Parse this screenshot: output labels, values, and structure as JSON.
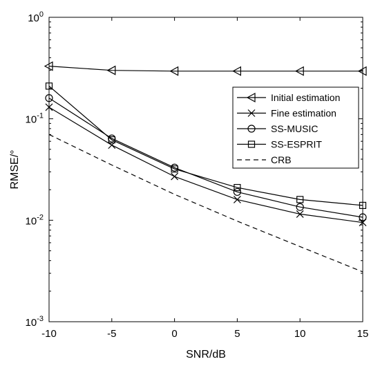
{
  "chart_data": {
    "type": "line",
    "xlabel": "SNR/dB",
    "ylabel": "RMSE/°",
    "yscale": "log",
    "xlim": [
      -10,
      15
    ],
    "ylim": [
      0.001,
      1
    ],
    "grid": false,
    "legend_position": "right",
    "x": [
      -10,
      -5,
      0,
      5,
      10,
      15
    ],
    "x_ticks": [
      "-10",
      "-5",
      "0",
      "5",
      "10",
      "15"
    ],
    "y_ticks": [
      {
        "base": "10",
        "exp": "-3",
        "value": 0.001
      },
      {
        "base": "10",
        "exp": "-2",
        "value": 0.01
      },
      {
        "base": "10",
        "exp": "-1",
        "value": 0.1
      },
      {
        "base": "10",
        "exp": "0",
        "value": 1
      }
    ],
    "series": [
      {
        "name": "Initial estimation",
        "marker": "triangle-left",
        "dash": "solid",
        "values": [
          0.33,
          0.3,
          0.295,
          0.295,
          0.295,
          0.295
        ]
      },
      {
        "name": "Fine estimation",
        "marker": "x",
        "dash": "solid",
        "values": [
          0.13,
          0.055,
          0.027,
          0.016,
          0.0115,
          0.0095
        ]
      },
      {
        "name": "SS-MUSIC",
        "marker": "circle",
        "dash": "solid",
        "values": [
          0.16,
          0.064,
          0.033,
          0.019,
          0.0135,
          0.0107
        ]
      },
      {
        "name": "SS-ESPRIT",
        "marker": "square",
        "dash": "solid",
        "values": [
          0.21,
          0.062,
          0.032,
          0.021,
          0.016,
          0.014
        ]
      },
      {
        "name": "CRB",
        "marker": "none",
        "dash": "dashed",
        "values": [
          0.07,
          0.035,
          0.018,
          0.0098,
          0.0055,
          0.0031
        ]
      }
    ]
  }
}
